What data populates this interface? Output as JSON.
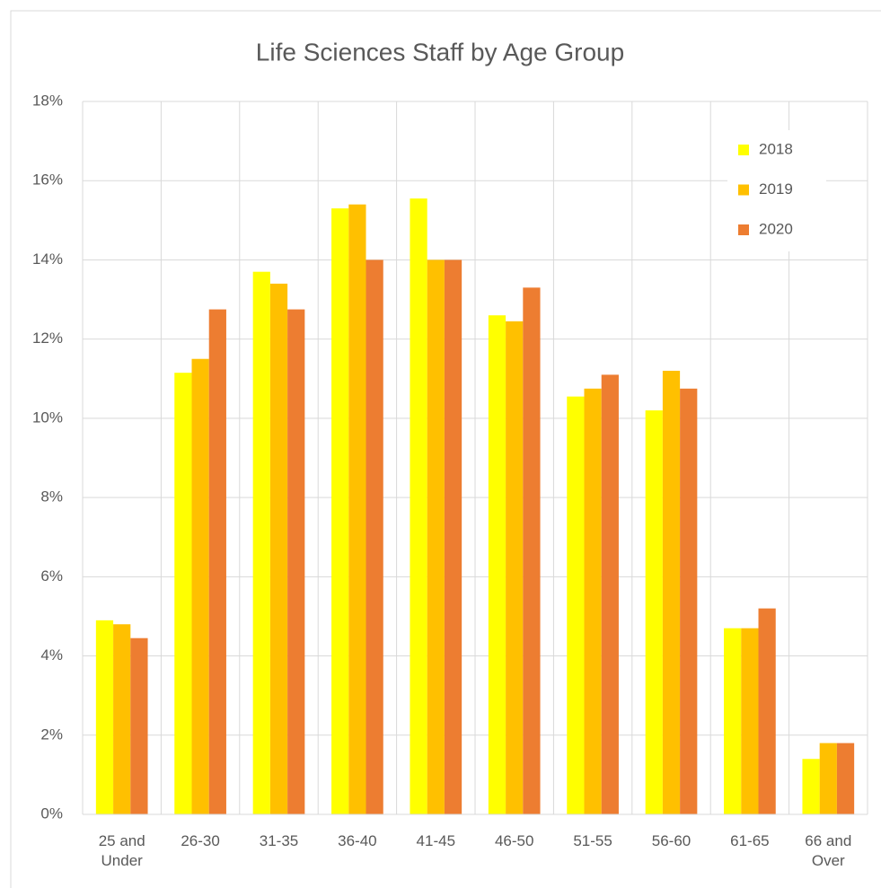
{
  "chart_data": {
    "type": "bar",
    "title": "Life Sciences Staff by Age Group",
    "categories": [
      "25 and Under",
      "26-30",
      "31-35",
      "36-40",
      "41-45",
      "46-50",
      "51-55",
      "56-60",
      "61-65",
      "66 and Over"
    ],
    "series": [
      {
        "name": "2018",
        "color": "#FFFF00",
        "values": [
          4.9,
          11.15,
          13.7,
          15.3,
          15.55,
          12.6,
          10.55,
          10.2,
          4.7,
          1.4
        ]
      },
      {
        "name": "2019",
        "color": "#FFC000",
        "values": [
          4.8,
          11.5,
          13.4,
          15.4,
          14.0,
          12.45,
          10.75,
          11.2,
          4.7,
          1.8
        ]
      },
      {
        "name": "2020",
        "color": "#ED7D31",
        "values": [
          4.45,
          12.75,
          12.75,
          14.0,
          14.0,
          13.3,
          11.1,
          10.75,
          5.2,
          1.8
        ]
      }
    ],
    "ylim": [
      0,
      18
    ],
    "yticks": [
      {
        "value": 0,
        "label": "0%"
      },
      {
        "value": 2,
        "label": "2%"
      },
      {
        "value": 4,
        "label": "4%"
      },
      {
        "value": 6,
        "label": "6%"
      },
      {
        "value": 8,
        "label": "8%"
      },
      {
        "value": 10,
        "label": "10%"
      },
      {
        "value": 12,
        "label": "12%"
      },
      {
        "value": 14,
        "label": "14%"
      },
      {
        "value": 16,
        "label": "16%"
      },
      {
        "value": 18,
        "label": "18%"
      }
    ],
    "grid": true,
    "legend": "upper right"
  }
}
